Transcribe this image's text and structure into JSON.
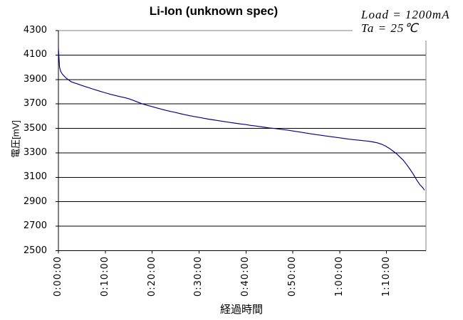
{
  "annotation": {
    "line1": "Load = 1200mA",
    "line2": "Ta = 25℃"
  },
  "colors": {
    "line": "#000080",
    "grid": "#000000",
    "plot_border": "#808080",
    "background": "#ffffff",
    "text": "#000000"
  },
  "chart_data": {
    "type": "line",
    "title": "Li-Ion (unknown spec)",
    "xlabel": "経過時間",
    "ylabel": "電圧[mV]",
    "ylim": [
      2500,
      4300
    ],
    "y_tick_step": 200,
    "y_ticks": [
      4300,
      4100,
      3900,
      3700,
      3500,
      3300,
      3100,
      2900,
      2700,
      2500
    ],
    "x_tick_interval_minutes": 10,
    "x_tick_labels": [
      "0:00:00",
      "0:10:00",
      "0:20:00",
      "0:30:00",
      "0:40:00",
      "0:50:00",
      "1:00:00",
      "1:10:00"
    ],
    "x_max_minutes": 78.4,
    "grid": "horizontal-only",
    "legend": "none",
    "annotations": [
      "Load = 1200mA",
      "Ta = 25℃"
    ],
    "series": [
      {
        "color": "#000080",
        "points_min_mV": [
          [
            0,
            4155
          ],
          [
            0.25,
            4000
          ],
          [
            0.5,
            3965
          ],
          [
            0.75,
            3950
          ],
          [
            0.95,
            3938
          ],
          [
            1.7,
            3910
          ],
          [
            2.7,
            3882
          ],
          [
            3.5,
            3871
          ],
          [
            4,
            3865
          ],
          [
            5,
            3851
          ],
          [
            6,
            3839
          ],
          [
            7,
            3826
          ],
          [
            8,
            3814
          ],
          [
            9,
            3802
          ],
          [
            10,
            3791
          ],
          [
            11,
            3780
          ],
          [
            12,
            3770
          ],
          [
            13,
            3761
          ],
          [
            14,
            3753
          ],
          [
            15,
            3743
          ],
          [
            16,
            3729
          ],
          [
            17,
            3714
          ],
          [
            18,
            3699
          ],
          [
            19,
            3688
          ],
          [
            20,
            3678
          ],
          [
            21,
            3667
          ],
          [
            22,
            3657
          ],
          [
            23,
            3647
          ],
          [
            24,
            3638
          ],
          [
            25,
            3630
          ],
          [
            26,
            3621
          ],
          [
            27,
            3612
          ],
          [
            28,
            3604
          ],
          [
            29,
            3597
          ],
          [
            30,
            3590
          ],
          [
            31,
            3583
          ],
          [
            32,
            3576
          ],
          [
            33,
            3570
          ],
          [
            34,
            3564
          ],
          [
            35,
            3558
          ],
          [
            36,
            3552
          ],
          [
            37,
            3546
          ],
          [
            38,
            3541
          ],
          [
            39,
            3536
          ],
          [
            40,
            3531
          ],
          [
            41,
            3525
          ],
          [
            42,
            3520
          ],
          [
            43,
            3514
          ],
          [
            44,
            3509
          ],
          [
            45,
            3504
          ],
          [
            46,
            3500
          ],
          [
            47,
            3495
          ],
          [
            48,
            3490
          ],
          [
            49,
            3485
          ],
          [
            50,
            3479
          ],
          [
            51,
            3473
          ],
          [
            52,
            3467
          ],
          [
            53,
            3461
          ],
          [
            54,
            3455
          ],
          [
            55,
            3449
          ],
          [
            56,
            3444
          ],
          [
            57,
            3438
          ],
          [
            58,
            3433
          ],
          [
            59,
            3428
          ],
          [
            60,
            3423
          ],
          [
            61,
            3417
          ],
          [
            62,
            3412
          ],
          [
            63,
            3408
          ],
          [
            64,
            3404
          ],
          [
            65,
            3400
          ],
          [
            66,
            3396
          ],
          [
            67,
            3390
          ],
          [
            68,
            3382
          ],
          [
            69,
            3370
          ],
          [
            69.8,
            3355
          ],
          [
            70.6,
            3336
          ],
          [
            71.4,
            3314
          ],
          [
            72.1,
            3294
          ],
          [
            72.8,
            3268
          ],
          [
            73.5,
            3242
          ],
          [
            74.2,
            3208
          ],
          [
            75,
            3166
          ],
          [
            75.7,
            3126
          ],
          [
            76.4,
            3080
          ],
          [
            77.1,
            3040
          ],
          [
            77.7,
            3016
          ],
          [
            78.1,
            2995
          ]
        ]
      }
    ]
  }
}
